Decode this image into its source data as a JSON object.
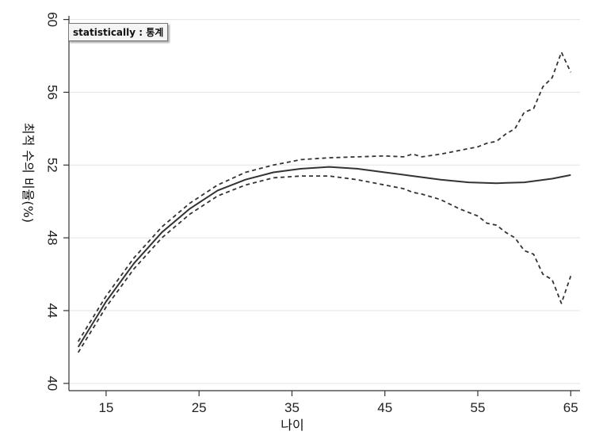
{
  "tooltip": {
    "text": "statistically : 통계"
  },
  "chart_data": {
    "type": "line",
    "title": "",
    "xlabel": "나이",
    "ylabel": "최적 수의 비율(%)",
    "xlim": [
      11,
      66
    ],
    "ylim": [
      39.6,
      60.2
    ],
    "xticks": [
      15,
      25,
      35,
      45,
      55,
      65
    ],
    "yticks": [
      40,
      44,
      48,
      52,
      56,
      60
    ],
    "grid": "horizontal",
    "series": [
      {
        "style": "solid",
        "x": [
          12,
          15,
          18,
          21,
          24,
          27,
          30,
          33,
          36,
          39,
          42,
          45,
          48,
          51,
          54,
          57,
          60,
          63,
          65
        ],
        "y": [
          42.0,
          44.5,
          46.6,
          48.3,
          49.6,
          50.6,
          51.2,
          51.6,
          51.8,
          51.9,
          51.8,
          51.6,
          51.4,
          51.2,
          51.05,
          51.0,
          51.05,
          51.25,
          51.45
        ]
      },
      {
        "style": "dashed",
        "x": [
          12,
          15,
          18,
          21,
          24,
          27,
          30,
          33,
          36,
          39,
          42,
          45,
          47,
          48,
          49,
          51,
          53,
          55,
          56,
          57,
          58,
          59,
          60,
          61,
          62,
          63,
          64,
          65
        ],
        "y": [
          42.3,
          44.8,
          46.9,
          48.6,
          49.9,
          50.9,
          51.6,
          52.0,
          52.3,
          52.4,
          52.45,
          52.5,
          52.45,
          52.6,
          52.45,
          52.6,
          52.8,
          53.0,
          53.2,
          53.3,
          53.7,
          54.0,
          54.9,
          55.1,
          56.3,
          56.8,
          58.2,
          57.1
        ]
      },
      {
        "style": "dashed",
        "x": [
          12,
          15,
          18,
          21,
          24,
          27,
          30,
          33,
          36,
          39,
          42,
          45,
          47,
          48,
          49,
          51,
          53,
          55,
          56,
          57,
          58,
          59,
          60,
          61,
          62,
          63,
          64,
          65
        ],
        "y": [
          41.7,
          44.2,
          46.3,
          48.0,
          49.3,
          50.3,
          50.9,
          51.3,
          51.4,
          51.4,
          51.2,
          50.9,
          50.7,
          50.5,
          50.4,
          50.1,
          49.6,
          49.2,
          48.8,
          48.7,
          48.3,
          48.0,
          47.3,
          47.1,
          46.0,
          45.7,
          44.4,
          45.9
        ]
      }
    ]
  }
}
